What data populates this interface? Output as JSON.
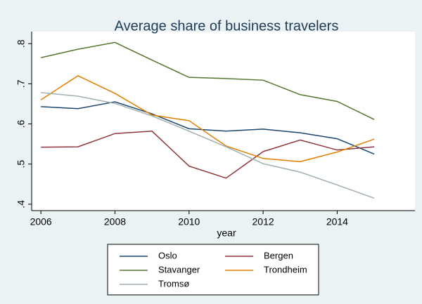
{
  "chart_data": {
    "type": "line",
    "title": "Average share of business travelers",
    "x_label": "year",
    "x": [
      2006,
      2007,
      2008,
      2009,
      2010,
      2011,
      2012,
      2013,
      2014,
      2015
    ],
    "series": [
      {
        "name": "Oslo",
        "color": "#1a476f",
        "values": [
          0.643,
          0.638,
          0.655,
          0.625,
          0.588,
          0.582,
          0.587,
          0.578,
          0.563,
          0.525
        ]
      },
      {
        "name": "Bergen",
        "color": "#90353b",
        "values": [
          0.542,
          0.543,
          0.576,
          0.582,
          0.495,
          0.465,
          0.531,
          0.56,
          0.535,
          0.543
        ]
      },
      {
        "name": "Stavanger",
        "color": "#55752f",
        "values": [
          0.765,
          0.786,
          0.803,
          0.759,
          0.716,
          0.713,
          0.709,
          0.673,
          0.656,
          0.611
        ]
      },
      {
        "name": "Trondheim",
        "color": "#e37e00",
        "values": [
          0.66,
          0.72,
          0.676,
          0.622,
          0.608,
          0.545,
          0.514,
          0.506,
          0.53,
          0.562
        ]
      },
      {
        "name": "Tromsø",
        "color": "#a0b1ad",
        "values": [
          0.678,
          0.669,
          0.651,
          0.62,
          0.582,
          0.543,
          0.501,
          0.48,
          0.448,
          0.415
        ]
      }
    ],
    "xlim": [
      2005.75,
      2016.1
    ],
    "xticks": [
      2006,
      2008,
      2010,
      2012,
      2014
    ],
    "ylim": [
      0.384,
      0.83
    ],
    "yticks": [
      {
        "value": 0.4,
        "label": ".4"
      },
      {
        "value": 0.5,
        "label": ".5"
      },
      {
        "value": 0.6,
        "label": ".6"
      },
      {
        "value": 0.7,
        "label": ".7"
      },
      {
        "value": 0.8,
        "label": ".8"
      }
    ],
    "legend": "bottom"
  }
}
